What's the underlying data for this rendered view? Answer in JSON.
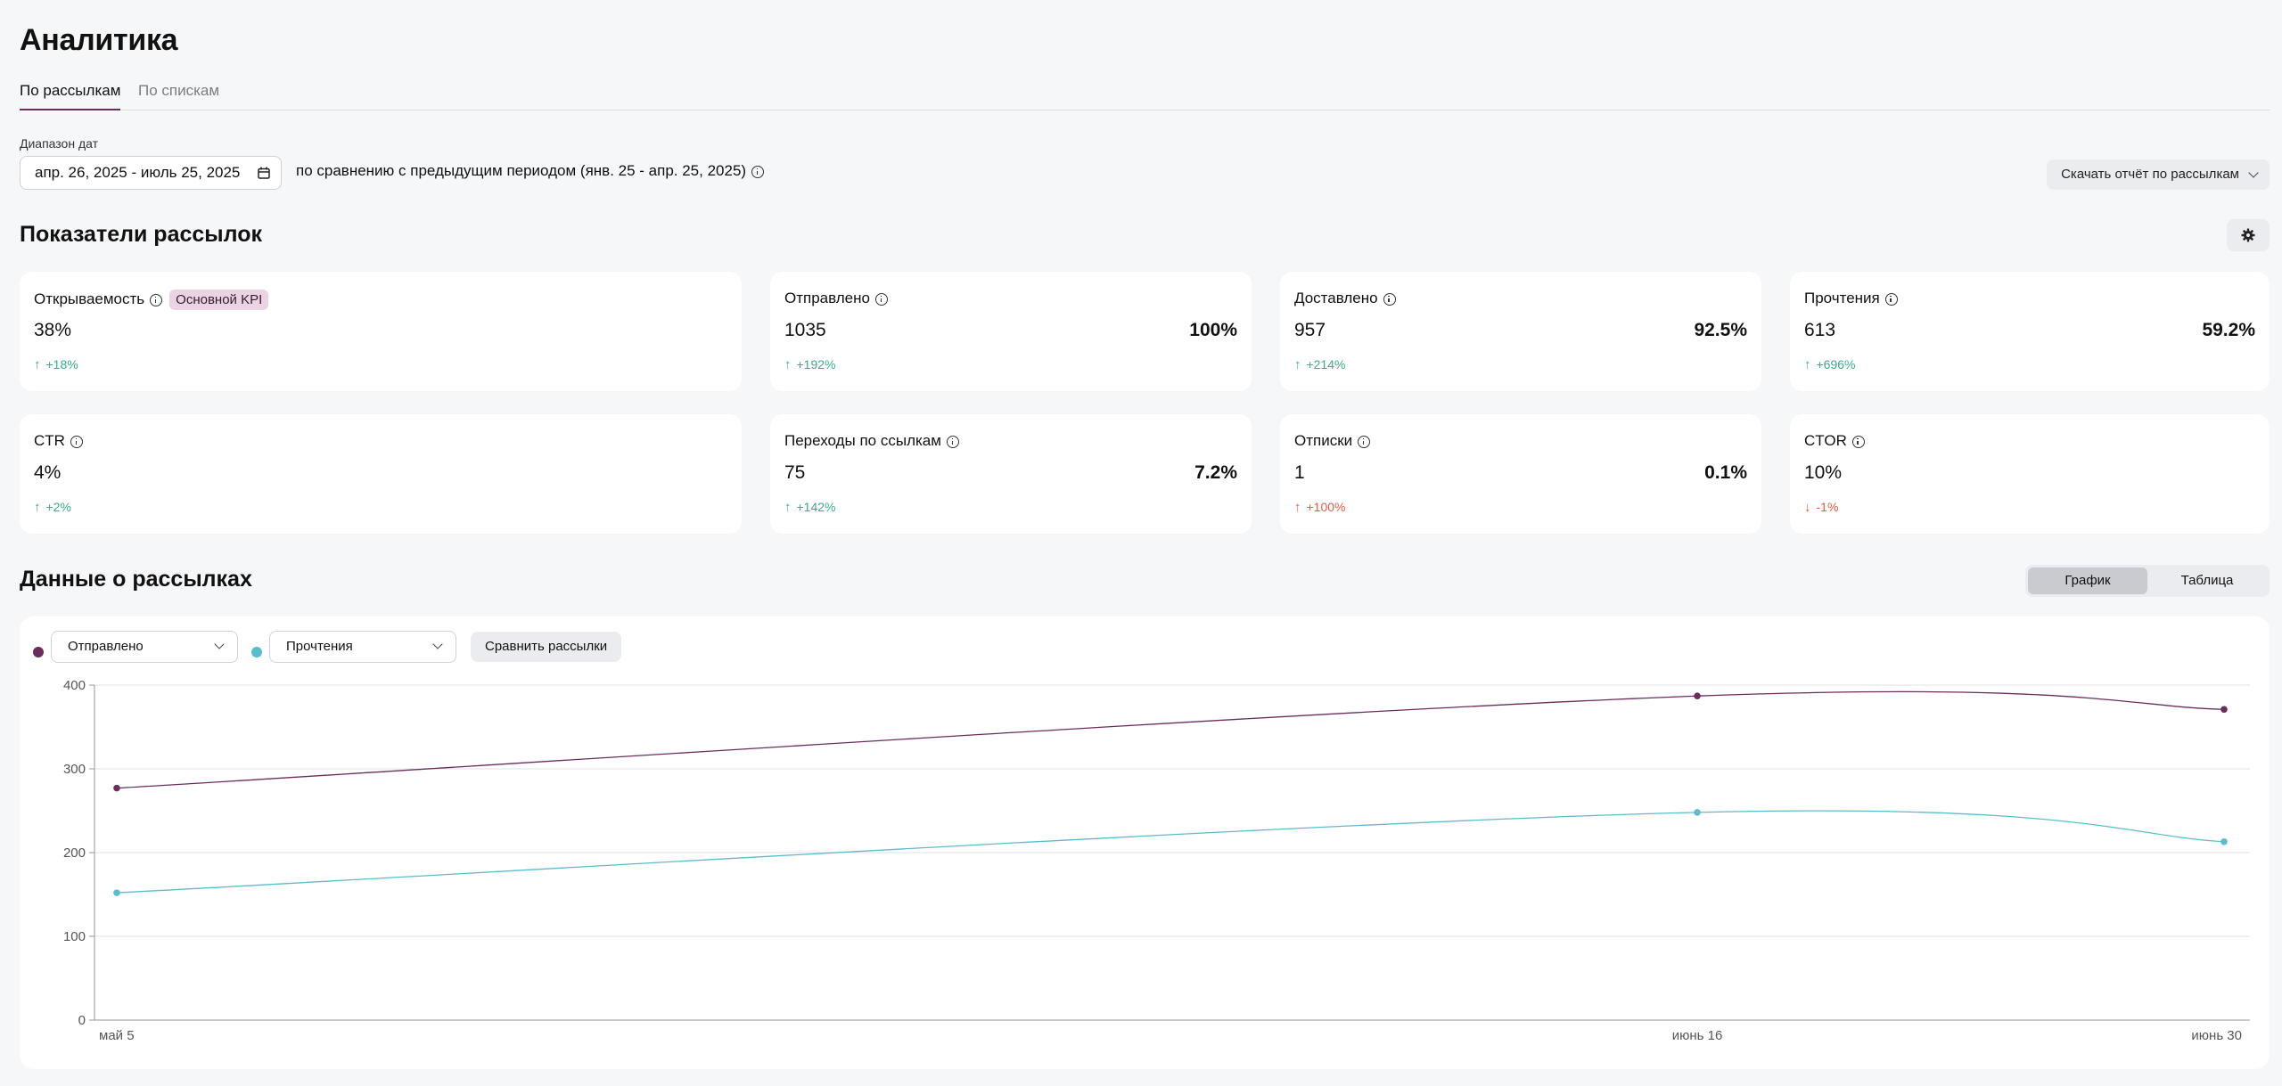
{
  "page": {
    "title": "Аналитика"
  },
  "tabs": [
    {
      "label": "По рассылкам",
      "active": true
    },
    {
      "label": "По спискам",
      "active": false
    }
  ],
  "filters": {
    "range_label": "Диапазон дат",
    "date_range": "апр. 26, 2025 - июль 25, 2025",
    "comparison": "по сравнению с предыдущим периодом (янв. 25 - апр. 25, 2025)",
    "download_label": "Скачать отчёт по рассылкам"
  },
  "metrics_section": {
    "title": "Показатели рассылок",
    "kpi_badge": "Основной KPI",
    "cards": [
      {
        "label": "Открываемость",
        "value": "38%",
        "percent": "",
        "delta": "+18%",
        "trend": "up"
      },
      {
        "label": "Отправлено",
        "value": "1035",
        "percent": "100%",
        "delta": "+192%",
        "trend": "up"
      },
      {
        "label": "Доставлено",
        "value": "957",
        "percent": "92.5%",
        "delta": "+214%",
        "trend": "up"
      },
      {
        "label": "Прочтения",
        "value": "613",
        "percent": "59.2%",
        "delta": "+696%",
        "trend": "up"
      },
      {
        "label": "CTR",
        "value": "4%",
        "percent": "",
        "delta": "+2%",
        "trend": "up"
      },
      {
        "label": "Переходы по ссылкам",
        "value": "75",
        "percent": "7.2%",
        "delta": "+142%",
        "trend": "up"
      },
      {
        "label": "Отписки",
        "value": "1",
        "percent": "0.1%",
        "delta": "+100%",
        "trend": "up"
      },
      {
        "label": "CTOR",
        "value": "10%",
        "percent": "",
        "delta": "-1%",
        "trend": "down"
      }
    ],
    "colors": {
      "up": "#3aa98c",
      "up_negative": "#e25b45",
      "down": "#e25b45"
    }
  },
  "data_section": {
    "title": "Данные о рассылках",
    "view_toggle": {
      "chart": "График",
      "table": "Таблица",
      "active": "chart"
    },
    "series_select_1": "Отправлено",
    "series_select_2": "Прочтения",
    "compare_label": "Сравнить рассылки"
  },
  "chart_data": {
    "type": "line",
    "x": [
      "май 5",
      "июнь 16",
      "июнь 30"
    ],
    "x_dates": [
      "2025-05-05",
      "2025-06-16",
      "2025-06-30"
    ],
    "series": [
      {
        "name": "Отправлено",
        "color": "#6b2d5c",
        "values": [
          277,
          387,
          371
        ]
      },
      {
        "name": "Прочтения",
        "color": "#5bbdcc",
        "values": [
          152,
          248,
          213
        ]
      }
    ],
    "yticks": [
      0,
      100,
      200,
      300,
      400
    ],
    "ylim": [
      0,
      400
    ],
    "grid": true
  }
}
